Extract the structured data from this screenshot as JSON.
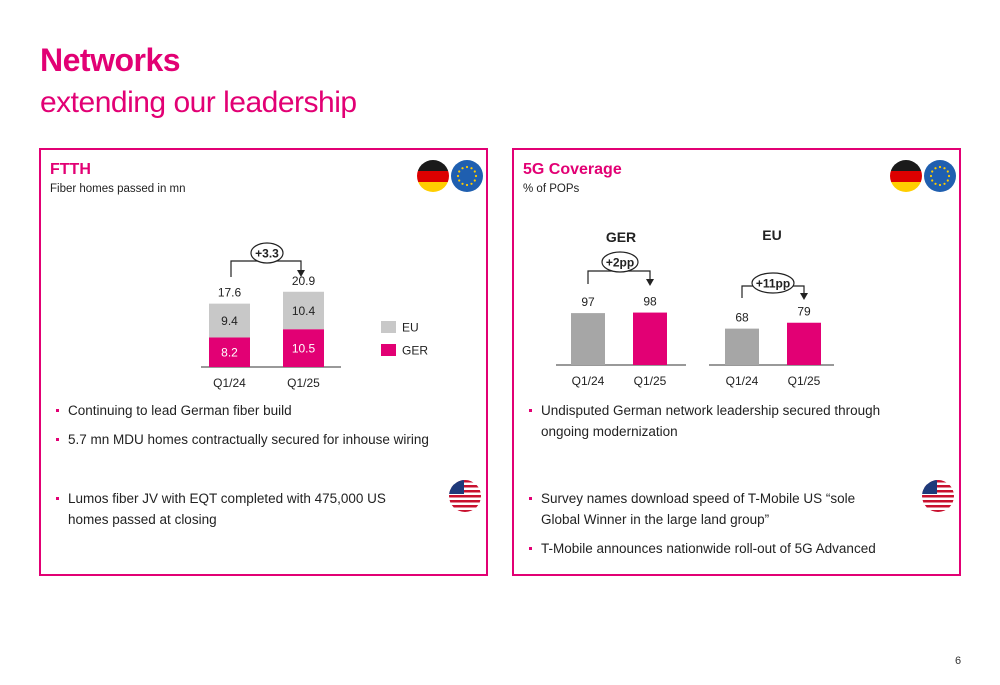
{
  "page": {
    "title": "Networks",
    "subtitle": "extending our leadership",
    "page_number": "6"
  },
  "ftth": {
    "title": "FTTH",
    "subtitle": "Fiber homes passed in mn",
    "flags": [
      "germany-flag-icon",
      "eu-flag-icon"
    ],
    "bullets_group1": [
      "Continuing to lead German fiber build",
      "5.7 mn MDU homes contractually secured for inhouse wiring"
    ],
    "bullets_group2": [
      "Lumos fiber JV with EQT completed with 475,000 US homes passed at closing"
    ],
    "us_flag": "us-flag-icon"
  },
  "coverage": {
    "title": "5G Coverage",
    "subtitle": "% of POPs",
    "flags": [
      "germany-flag-icon",
      "eu-flag-icon"
    ],
    "bullets_group1": [
      "Undisputed German network leadership secured through ongoing modernization"
    ],
    "bullets_group2": [
      "Survey names download speed of T-Mobile US “sole Global Winner in the large land group”",
      "T-Mobile announces nationwide roll-out of 5G Advanced"
    ],
    "us_flag": "us-flag-icon"
  },
  "colors": {
    "magenta": "#e20074",
    "grey_light": "#c8c8c8",
    "grey_dark": "#a6a6a6"
  },
  "chart_data": [
    {
      "type": "bar",
      "stacked": true,
      "categories": [
        "Q1/24",
        "Q1/25"
      ],
      "series": [
        {
          "name": "GER",
          "values": [
            8.2,
            10.5
          ],
          "color": "#e20074"
        },
        {
          "name": "EU",
          "values": [
            9.4,
            10.4
          ],
          "color": "#c8c8c8"
        }
      ],
      "totals": [
        17.6,
        20.9
      ],
      "labels": {
        "totals": [
          "17.6",
          "20.9"
        ],
        "ger": [
          "8.2",
          "10.5"
        ],
        "eu": [
          "9.4",
          "10.4"
        ]
      },
      "annotation": "+3.3",
      "legend": [
        "EU",
        "GER"
      ],
      "legend_position": "right",
      "grid": false
    },
    {
      "type": "bar",
      "title": "GER",
      "categories": [
        "Q1/24",
        "Q1/25"
      ],
      "values": [
        97,
        98
      ],
      "labels": [
        "97",
        "98"
      ],
      "annotation": "+2pp",
      "colors": [
        "#a6a6a6",
        "#e20074"
      ],
      "grid": false
    },
    {
      "type": "bar",
      "title": "EU",
      "categories": [
        "Q1/24",
        "Q1/25"
      ],
      "values": [
        68,
        79
      ],
      "labels": [
        "68",
        "79"
      ],
      "annotation": "+11pp",
      "colors": [
        "#a6a6a6",
        "#e20074"
      ],
      "grid": false
    }
  ]
}
